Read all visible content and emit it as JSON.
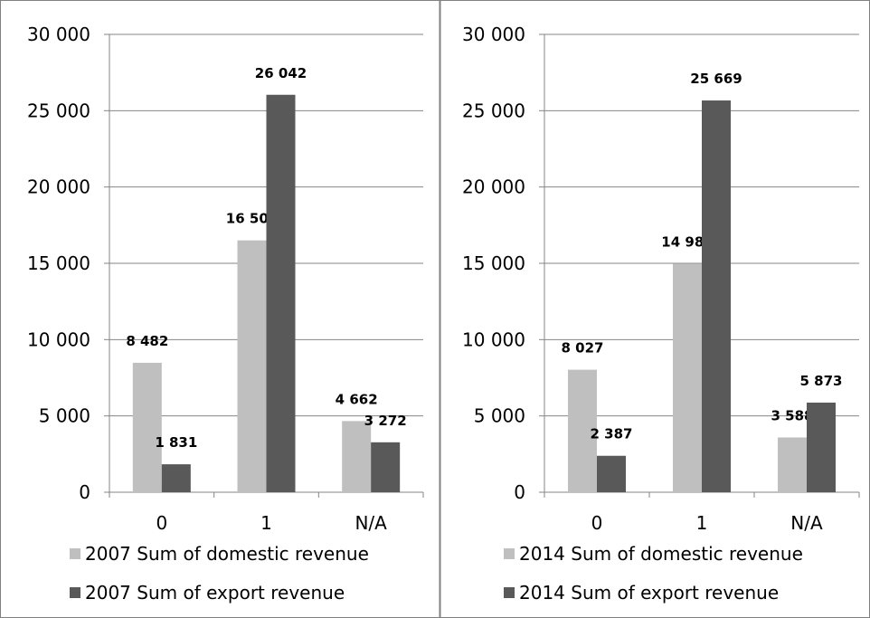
{
  "chart_data": [
    {
      "type": "bar",
      "categories": [
        "0",
        "1",
        "N/A"
      ],
      "series": [
        {
          "name": "2007 Sum of domestic revenue",
          "values": [
            8482,
            16501,
            4662
          ],
          "labels": [
            "8 482",
            "16 501",
            "4 662"
          ],
          "color": "#bfbfbf"
        },
        {
          "name": "2007 Sum of export revenue",
          "values": [
            1831,
            26042,
            3272
          ],
          "labels": [
            "1 831",
            "26 042",
            "3 272"
          ],
          "color": "#595959"
        }
      ],
      "ylim": [
        0,
        30000
      ],
      "yticks": [
        0,
        5000,
        10000,
        15000,
        20000,
        25000,
        30000
      ],
      "ytick_labels": [
        "0",
        "5 000",
        "10 000",
        "15 000",
        "20 000",
        "25 000",
        "30 000"
      ],
      "grid": true,
      "legend": "bottom"
    },
    {
      "type": "bar",
      "categories": [
        "0",
        "1",
        "N/A"
      ],
      "series": [
        {
          "name": "2014 Sum of domestic revenue",
          "values": [
            8027,
            14981,
            3588
          ],
          "labels": [
            "8 027",
            "14 981",
            "3 588"
          ],
          "color": "#bfbfbf"
        },
        {
          "name": "2014 Sum of export revenue",
          "values": [
            2387,
            25669,
            5873
          ],
          "labels": [
            "2 387",
            "25 669",
            "5 873"
          ],
          "color": "#595959"
        }
      ],
      "ylim": [
        0,
        30000
      ],
      "yticks": [
        0,
        5000,
        10000,
        15000,
        20000,
        25000,
        30000
      ],
      "ytick_labels": [
        "0",
        "5 000",
        "10 000",
        "15 000",
        "20 000",
        "25 000",
        "30 000"
      ],
      "grid": true,
      "legend": "bottom"
    }
  ]
}
